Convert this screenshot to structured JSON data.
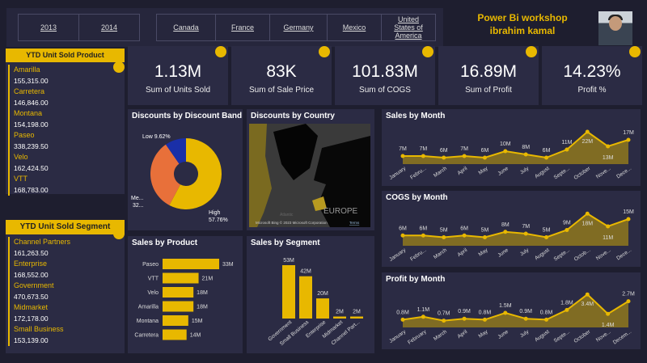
{
  "slicers": {
    "years": [
      "2013",
      "2014"
    ],
    "countries": [
      "Canada",
      "France",
      "Germany",
      "Mexico",
      "United States of America"
    ]
  },
  "header": {
    "title_line1": "Power Bi workshop",
    "title_line2": "ibrahim kamal"
  },
  "product_card": {
    "title": "YTD Unit Sold Product",
    "items": [
      {
        "name": "Amarilla",
        "value": "155,315.00"
      },
      {
        "name": "Carretera",
        "value": "146,846.00"
      },
      {
        "name": "Montana",
        "value": "154,198.00"
      },
      {
        "name": "Paseo",
        "value": "338,239.50"
      },
      {
        "name": "Velo",
        "value": "162,424.50"
      },
      {
        "name": "VTT",
        "value": "168,783.00"
      }
    ]
  },
  "segment_card": {
    "title": "YTD Unit Sold Segment",
    "items": [
      {
        "name": "Channel Partners",
        "value": "161,263.50"
      },
      {
        "name": "Enterprise",
        "value": "168,552.00"
      },
      {
        "name": "Government",
        "value": "470,673.50"
      },
      {
        "name": "Midmarket",
        "value": "172,178.00"
      },
      {
        "name": "Small Business",
        "value": "153,139.00"
      }
    ]
  },
  "kpis": [
    {
      "value": "1.13M",
      "label": "Sum of Units Sold"
    },
    {
      "value": "83K",
      "label": "Sum of Sale Price"
    },
    {
      "value": "101.83M",
      "label": "Sum of COGS"
    },
    {
      "value": "16.89M",
      "label": "Sum of Profit"
    },
    {
      "value": "14.23%",
      "label": "Profit %"
    }
  ],
  "map": {
    "title": "Discounts by Country",
    "region_label": "EUROPE",
    "ocean_label": "Atlantic",
    "attribution": "Microsoft Bing  © 2023 Microsoft Corporation",
    "terms": "Terms"
  },
  "colors": {
    "accent": "#e8b800",
    "background": "#1e1e2f",
    "panel": "#2b2b44",
    "medium": "#e8703a",
    "low": "#1a2fa8"
  },
  "chart_data": [
    {
      "type": "pie",
      "title": "Discounts by Discount Band",
      "slices": [
        {
          "name": "High",
          "value": 57.76,
          "label": "High",
          "pct": "57.76%",
          "color": "#e8b800"
        },
        {
          "name": "Medium",
          "value": 32.62,
          "label": "Me...",
          "pct": "32...",
          "color": "#e8703a"
        },
        {
          "name": "Low",
          "value": 9.62,
          "label": "Low",
          "pct": "9.62%",
          "color": "#1a2fa8"
        }
      ]
    },
    {
      "type": "bar",
      "orientation": "horizontal",
      "title": "Sales by Product",
      "categories": [
        "Paseo",
        "VTT",
        "Velo",
        "Amarilla",
        "Montana",
        "Carretera"
      ],
      "values": [
        33,
        21,
        18,
        18,
        15,
        14
      ],
      "labels": [
        "33M",
        "21M",
        "18M",
        "18M",
        "15M",
        "14M"
      ]
    },
    {
      "type": "bar",
      "orientation": "vertical",
      "title": "Sales by Segment",
      "categories": [
        "Government",
        "Small Business",
        "Enterprise",
        "Midmarket",
        "Channel Part..."
      ],
      "values": [
        53,
        42,
        20,
        2,
        2
      ],
      "labels": [
        "53M",
        "42M",
        "20M",
        "2M",
        "2M"
      ]
    },
    {
      "type": "area",
      "title": "Sales by Month",
      "categories": [
        "January",
        "Febru...",
        "March",
        "April",
        "May",
        "June",
        "July",
        "August",
        "Septe...",
        "October",
        "Nove...",
        "Dece..."
      ],
      "values": [
        7,
        7,
        6,
        7,
        6,
        10,
        8,
        6,
        11,
        22,
        13,
        17
      ],
      "labels": [
        "7M",
        "7M",
        "6M",
        "7M",
        "6M",
        "10M",
        "8M",
        "6M",
        "11M",
        "22M",
        "13M",
        "17M"
      ],
      "ylim": [
        5,
        23
      ]
    },
    {
      "type": "area",
      "title": "COGS by Month",
      "categories": [
        "January",
        "Febru...",
        "March",
        "April",
        "May",
        "June",
        "July",
        "August",
        "Septe...",
        "Octob...",
        "Nove...",
        "Dece..."
      ],
      "values": [
        6,
        6,
        5,
        6,
        5,
        8,
        7,
        5,
        9,
        18,
        11,
        15
      ],
      "labels": [
        "6M",
        "6M",
        "5M",
        "6M",
        "5M",
        "8M",
        "7M",
        "5M",
        "9M",
        "18M",
        "11M",
        "15M"
      ],
      "ylim": [
        3,
        19
      ]
    },
    {
      "type": "area",
      "title": "Profit by Month",
      "categories": [
        "January",
        "February",
        "March",
        "April",
        "May",
        "June",
        "July",
        "August",
        "Septe...",
        "October",
        "Nove...",
        "Decem..."
      ],
      "values": [
        0.8,
        1.1,
        0.7,
        0.9,
        0.8,
        1.5,
        0.9,
        0.8,
        1.8,
        3.4,
        1.4,
        2.7
      ],
      "labels": [
        "0.8M",
        "1.1M",
        "0.7M",
        "0.9M",
        "0.8M",
        "1.5M",
        "0.9M",
        "0.8M",
        "1.8M",
        "3.4M",
        "1.4M",
        "2.7M"
      ],
      "ylim": [
        0.5,
        3.5
      ]
    }
  ]
}
